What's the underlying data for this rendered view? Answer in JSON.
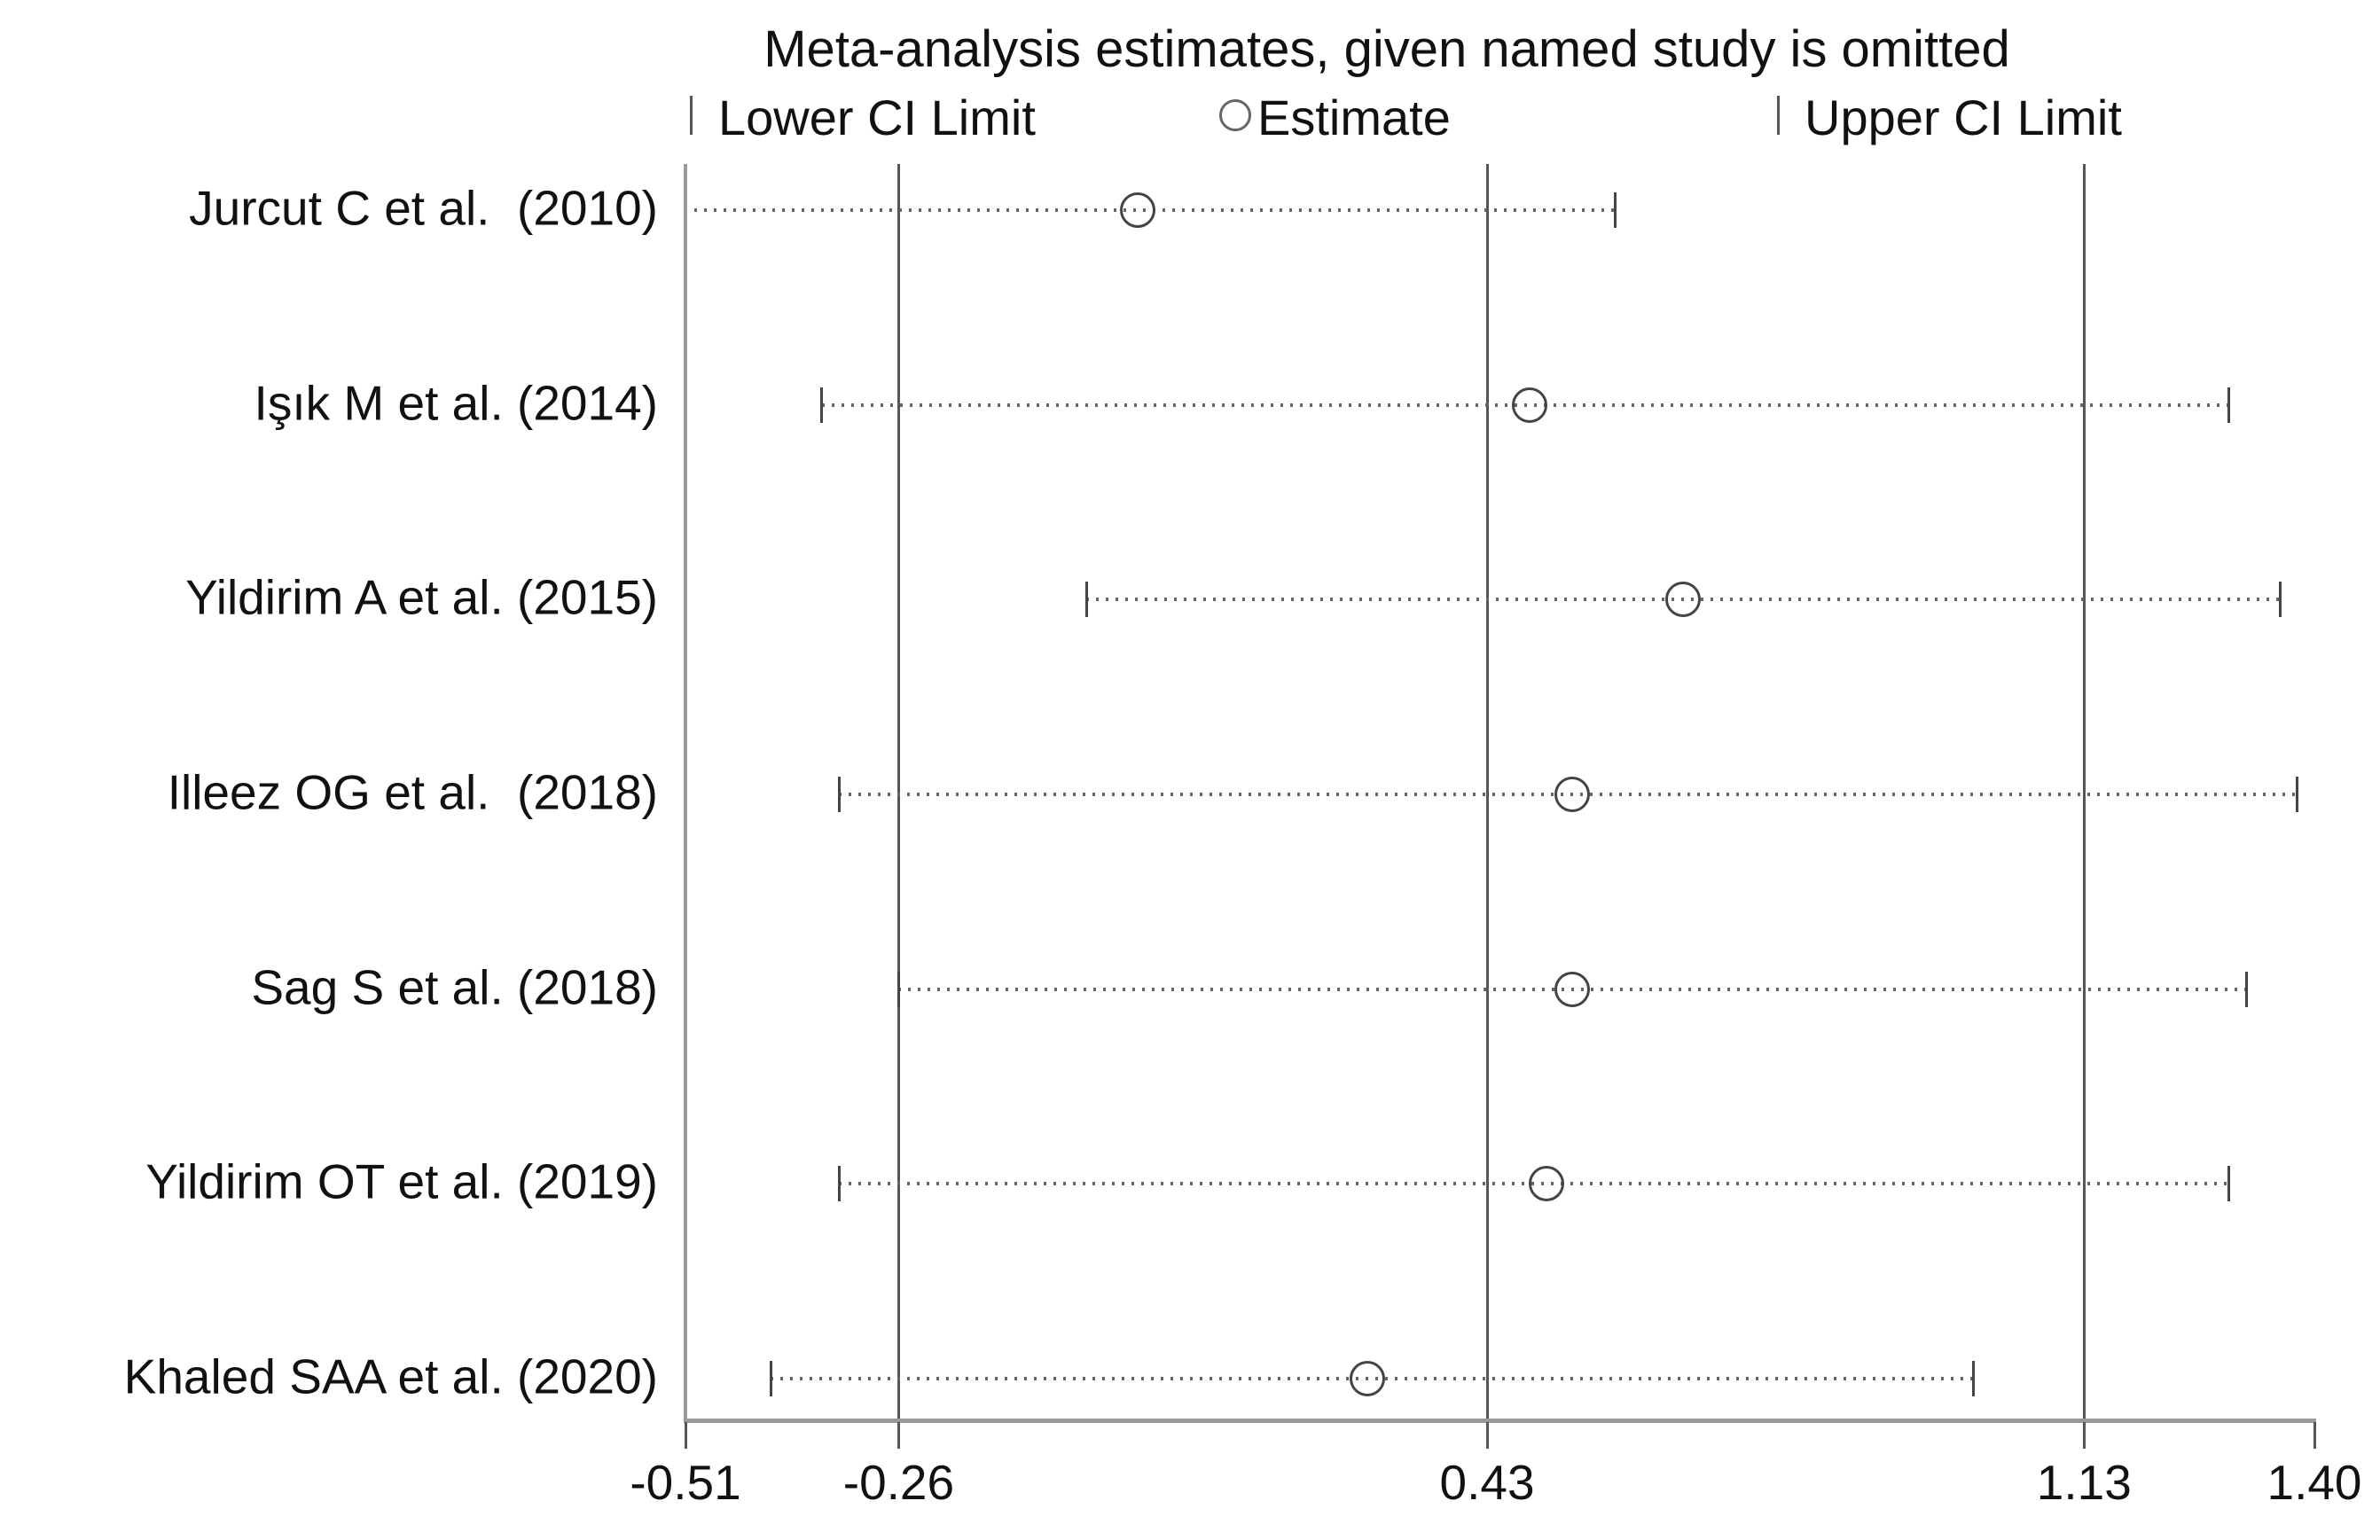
{
  "title": "Meta-analysis estimates, given named study is omitted",
  "legend": {
    "lower_label": "Lower CI Limit",
    "estimate_label": "Estimate",
    "upper_label": "Upper CI Limit"
  },
  "chart_data": {
    "type": "scatter",
    "subtype": "leave-one-out-forest-plot",
    "title": "Meta-analysis estimates, given named study is omitted",
    "xlabel": "",
    "ylabel": "",
    "xlim": [
      -0.51,
      1.4
    ],
    "x_ticks": [
      -0.51,
      -0.26,
      0.43,
      1.13,
      1.4
    ],
    "x_tick_labels": [
      "-0.51",
      "-0.26",
      "0.43",
      "1.13",
      "1.40"
    ],
    "reference_lines": [
      -0.26,
      0.43,
      1.13
    ],
    "overall": {
      "estimate": 0.43,
      "ci_lower": -0.26,
      "ci_upper": 1.13
    },
    "grid": false,
    "legend_position": "top",
    "legend_entries": [
      "Lower CI Limit",
      "Estimate",
      "Upper CI Limit"
    ],
    "studies": [
      {
        "label": "Jurcut C et al.  (2010)",
        "estimate": 0.02,
        "ci_lower": -0.5,
        "ci_upper": 0.58
      },
      {
        "label": "Işık M et al. (2014)",
        "estimate": 0.48,
        "ci_lower": -0.35,
        "ci_upper": 1.3
      },
      {
        "label": "Yildirim A et al. (2015)",
        "estimate": 0.66,
        "ci_lower": -0.04,
        "ci_upper": 1.36
      },
      {
        "label": "Illeez OG et al.  (2018)",
        "estimate": 0.53,
        "ci_lower": -0.33,
        "ci_upper": 1.38
      },
      {
        "label": "Sag S et al. (2018)",
        "estimate": 0.53,
        "ci_lower": -0.26,
        "ci_upper": 1.32
      },
      {
        "label": "Yildirim OT et al. (2019)",
        "estimate": 0.5,
        "ci_lower": -0.33,
        "ci_upper": 1.3
      },
      {
        "label": "Khaled SAA et al. (2020)",
        "estimate": 0.29,
        "ci_lower": -0.41,
        "ci_upper": 1.0
      }
    ],
    "colors": {
      "background": "#ffffff",
      "text": "#111111",
      "reference_line": "#555555",
      "axis": "#999999",
      "ci_dotted_line": "#666666",
      "marker_stroke": "#444444"
    }
  }
}
